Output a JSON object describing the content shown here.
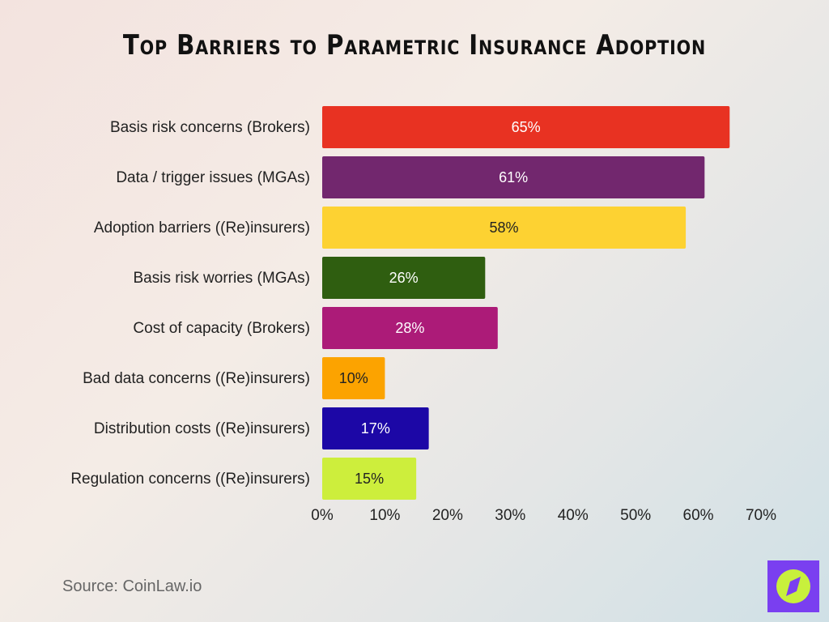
{
  "chart_data": {
    "type": "bar",
    "orientation": "horizontal",
    "title": "Top Barriers to Parametric Insurance Adoption",
    "categories": [
      "Basis risk concerns (Brokers)",
      "Data / trigger issues (MGAs)",
      "Adoption barriers ((Re)insurers)",
      "Basis risk worries (MGAs)",
      "Cost of capacity (Brokers)",
      "Bad data concerns ((Re)insurers)",
      "Distribution costs ((Re)insurers)",
      "Regulation concerns ((Re)insurers)"
    ],
    "values": [
      65,
      61,
      58,
      26,
      28,
      10,
      17,
      15
    ],
    "data_labels": [
      "65%",
      "61%",
      "58%",
      "26%",
      "28%",
      "10%",
      "17%",
      "15%"
    ],
    "colors": [
      "#e83222",
      "#72276e",
      "#fdd232",
      "#2f5e10",
      "#ac1b78",
      "#fca300",
      "#1c07a6",
      "#cdee3c"
    ],
    "label_colors": [
      "#ffffff",
      "#ffffff",
      "#222222",
      "#ffffff",
      "#ffffff",
      "#222222",
      "#ffffff",
      "#222222"
    ],
    "xlim": [
      0,
      70
    ],
    "xticks": [
      "0%",
      "10%",
      "20%",
      "30%",
      "40%",
      "50%",
      "60%",
      "70%"
    ],
    "grid": false
  },
  "source": "Source: CoinLaw.io",
  "logo": {
    "name": "compass-logo",
    "bg": "#7a3ff0",
    "fg": "#c8f03c"
  }
}
